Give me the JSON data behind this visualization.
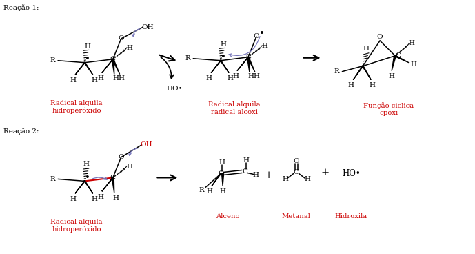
{
  "title_reacao1": "Reação 1:",
  "title_reacao2": "Reação 2:",
  "label_rad_alquila_hidro": "Radical alquila\nhidroperóxido",
  "label_rad_alquila_alcoxi": "Radical alquila\nradical alcoxi",
  "label_funcao_ciclica": "Função ciclica\nepoxi",
  "label_alceno": "Alceno",
  "label_metanal": "Metanal",
  "label_hidroxila": "Hidroxila",
  "label_ho_dot": "HO•",
  "red_color": "#CC0000",
  "black_color": "#000000",
  "blue_color": "#7777BB",
  "bg_color": "#FFFFFF"
}
